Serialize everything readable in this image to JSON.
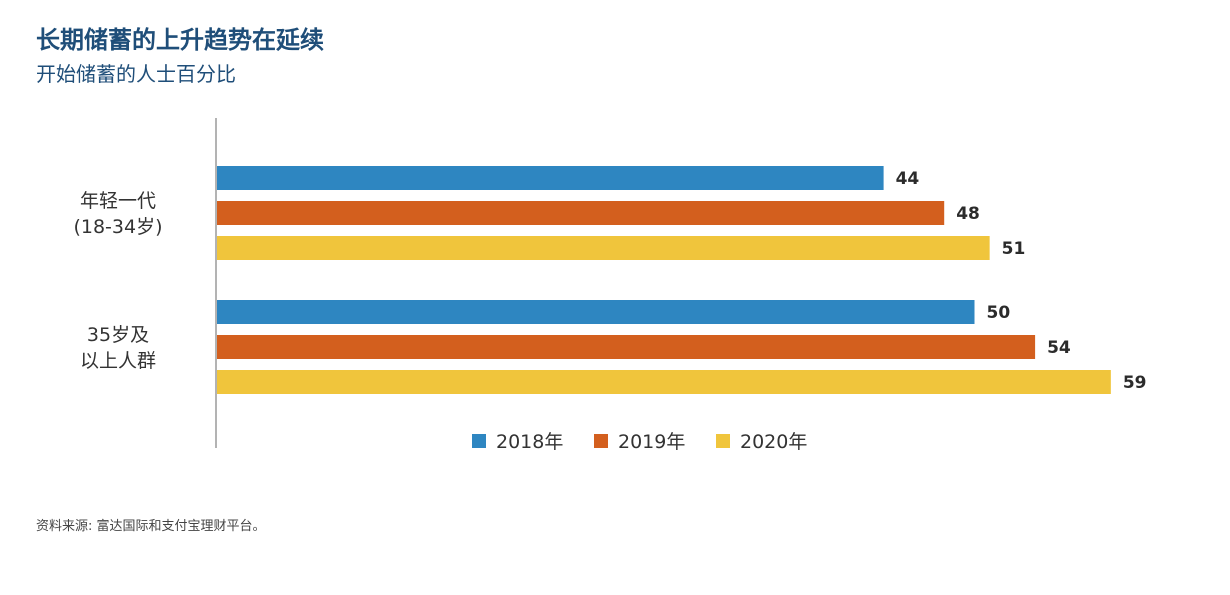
{
  "chart_data": {
    "type": "bar",
    "orientation": "horizontal",
    "title": "长期储蓄的上升趋势在延续",
    "subtitle": "开始储蓄的人士百分比",
    "categories": [
      [
        "年轻一代",
        "(18-34岁)"
      ],
      [
        "35岁及",
        "以上人群"
      ]
    ],
    "series": [
      {
        "name": "2018年",
        "values": [
          44,
          50
        ],
        "color": "#2e86c1"
      },
      {
        "name": "2019年",
        "values": [
          48,
          54
        ],
        "color": "#d35f1e"
      },
      {
        "name": "2020年",
        "values": [
          51,
          59
        ],
        "color": "#f0c53c"
      }
    ],
    "xlim": [
      0,
      60
    ],
    "grid": false,
    "legend_position": "bottom-center",
    "source": "资料来源: 富达国际和支付宝理财平台。"
  }
}
